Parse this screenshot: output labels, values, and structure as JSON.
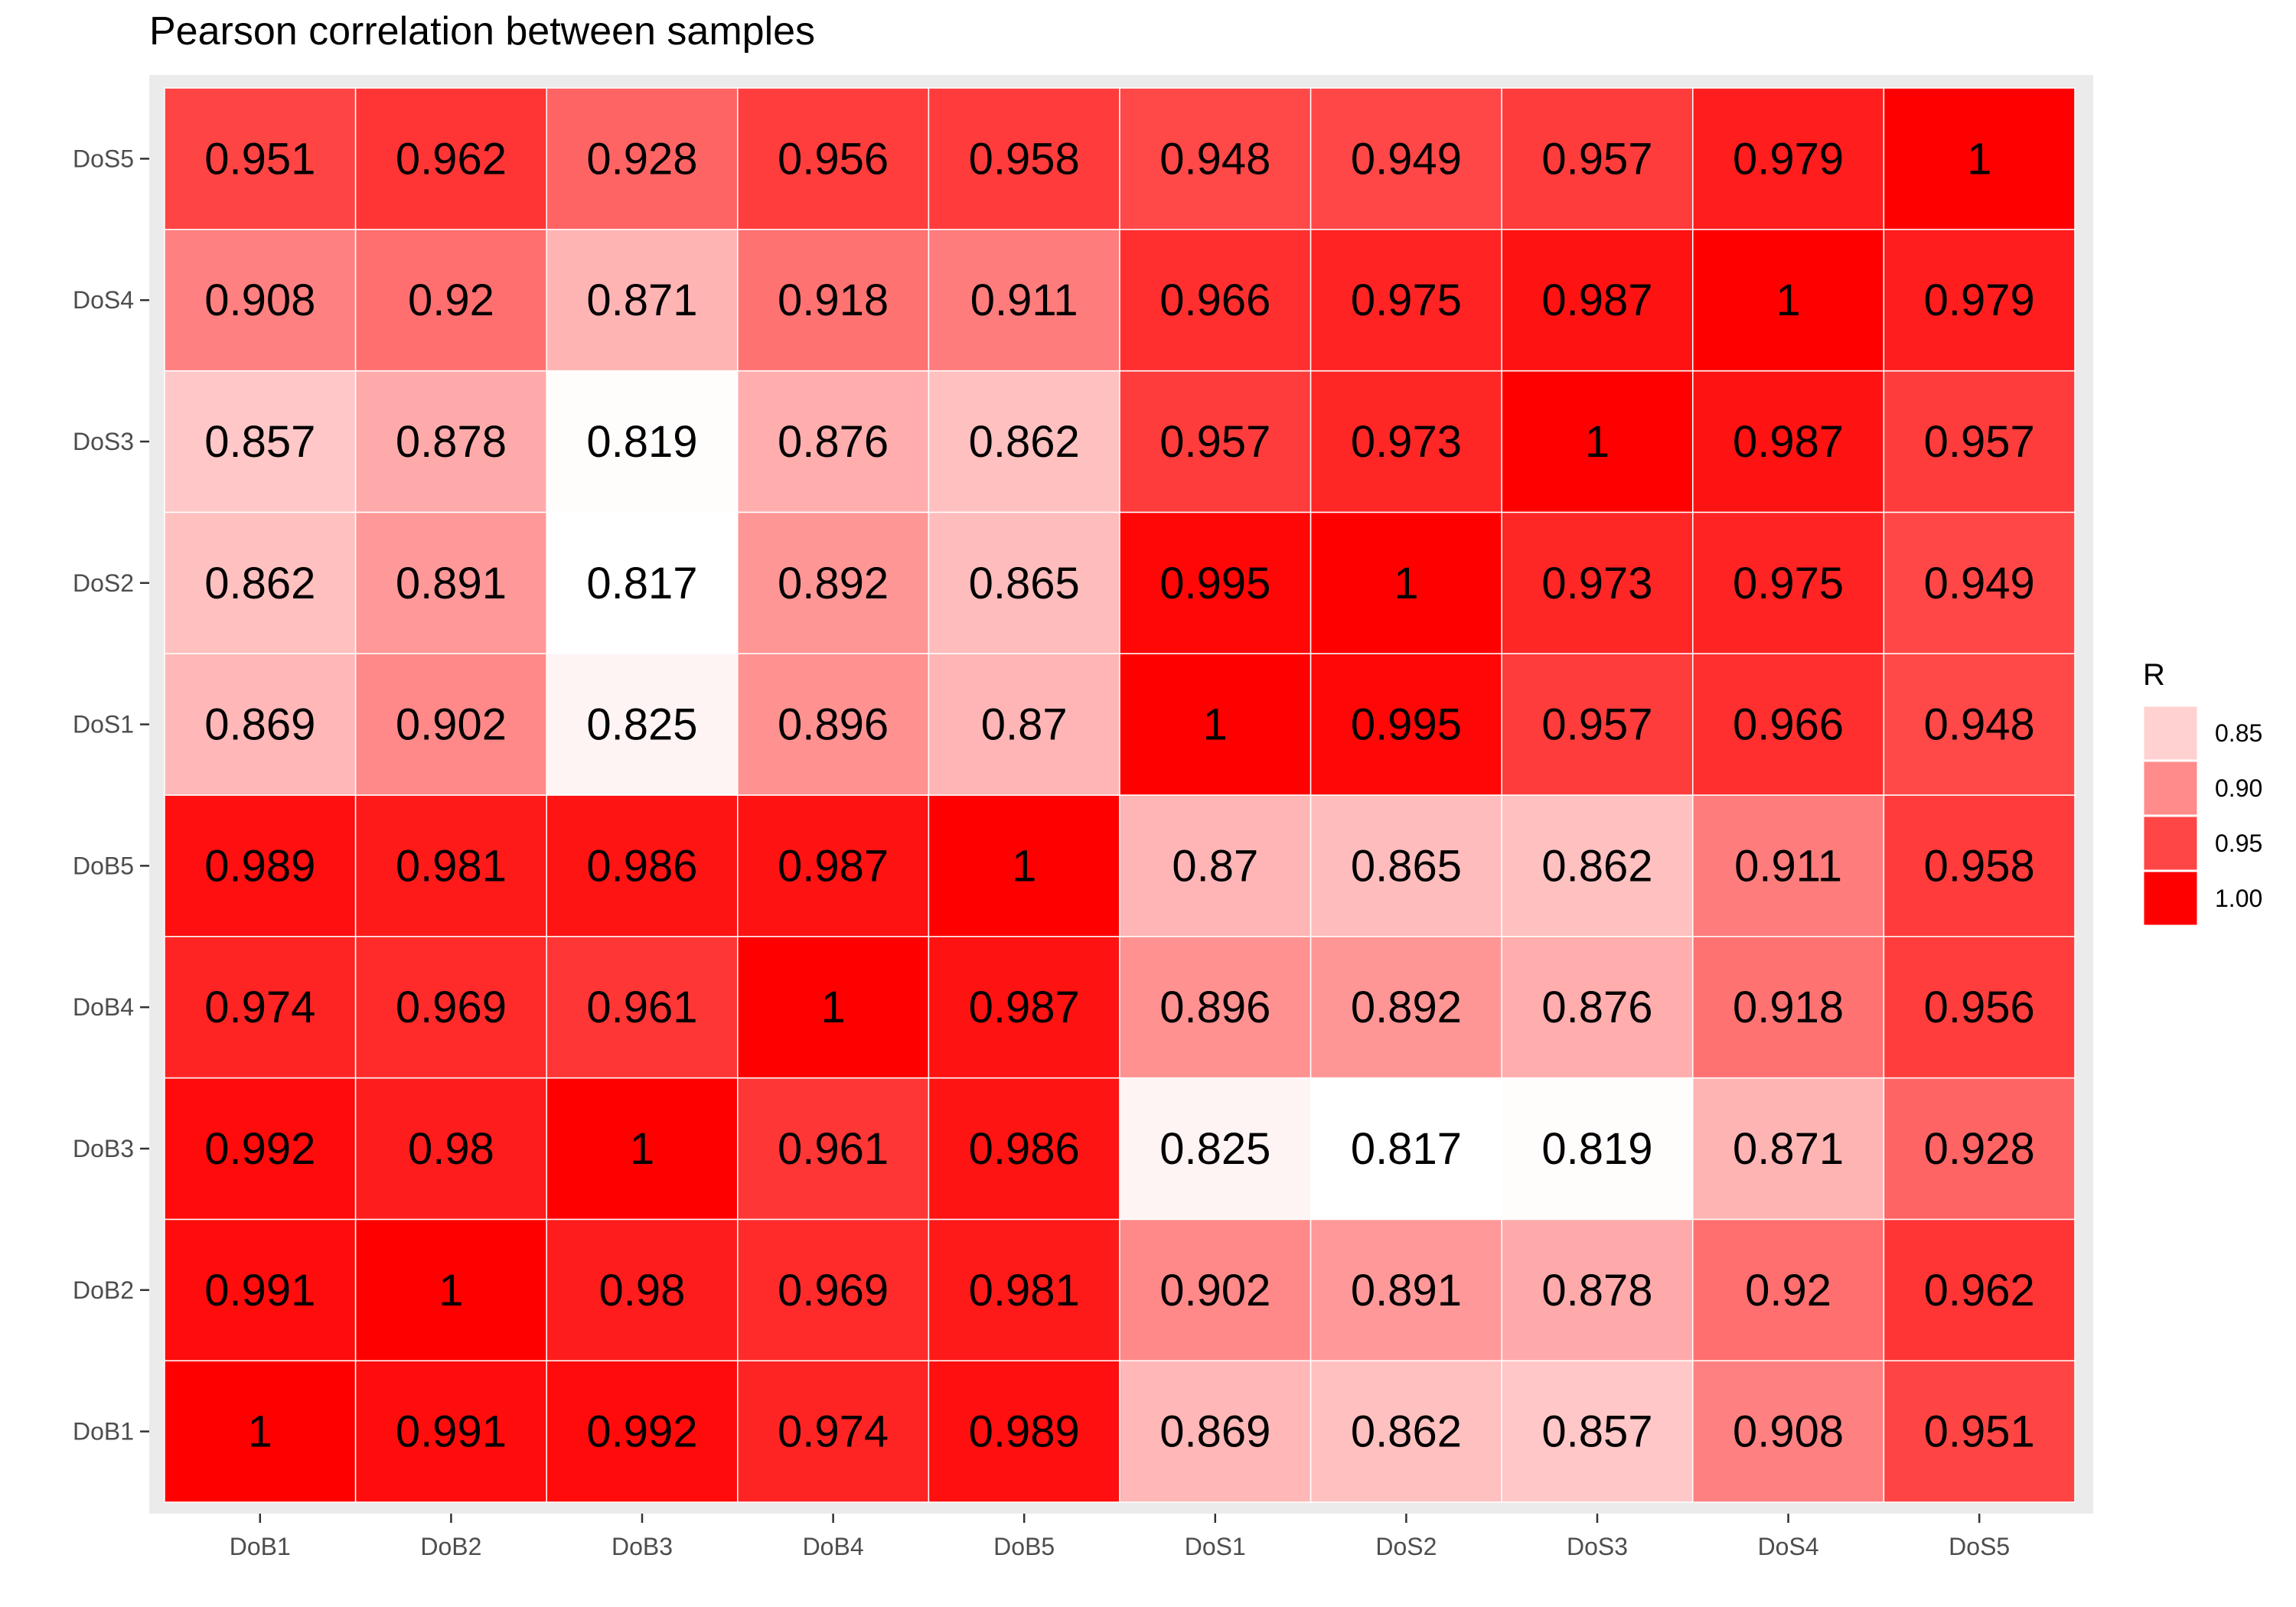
{
  "chart_data": {
    "type": "heatmap",
    "title": "Pearson correlation between samples",
    "x_categories": [
      "DoB1",
      "DoB2",
      "DoB3",
      "DoB4",
      "DoB5",
      "DoS1",
      "DoS2",
      "DoS3",
      "DoS4",
      "DoS5"
    ],
    "y_categories": [
      "DoB1",
      "DoB2",
      "DoB3",
      "DoB4",
      "DoB5",
      "DoS1",
      "DoS2",
      "DoS3",
      "DoS4",
      "DoS5"
    ],
    "values": [
      [
        "1",
        "0.991",
        "0.992",
        "0.974",
        "0.989",
        "0.869",
        "0.862",
        "0.857",
        "0.908",
        "0.951"
      ],
      [
        "0.991",
        "1",
        "0.98",
        "0.969",
        "0.981",
        "0.902",
        "0.891",
        "0.878",
        "0.92",
        "0.962"
      ],
      [
        "0.992",
        "0.98",
        "1",
        "0.961",
        "0.986",
        "0.825",
        "0.817",
        "0.819",
        "0.871",
        "0.928"
      ],
      [
        "0.974",
        "0.969",
        "0.961",
        "1",
        "0.987",
        "0.896",
        "0.892",
        "0.876",
        "0.918",
        "0.956"
      ],
      [
        "0.989",
        "0.981",
        "0.986",
        "0.987",
        "1",
        "0.87",
        "0.865",
        "0.862",
        "0.911",
        "0.958"
      ],
      [
        "0.869",
        "0.902",
        "0.825",
        "0.896",
        "0.87",
        "1",
        "0.995",
        "0.957",
        "0.966",
        "0.948"
      ],
      [
        "0.862",
        "0.891",
        "0.817",
        "0.892",
        "0.865",
        "0.995",
        "1",
        "0.973",
        "0.975",
        "0.949"
      ],
      [
        "0.857",
        "0.878",
        "0.819",
        "0.876",
        "0.862",
        "0.957",
        "0.973",
        "1",
        "0.987",
        "0.957"
      ],
      [
        "0.908",
        "0.92",
        "0.871",
        "0.918",
        "0.911",
        "0.966",
        "0.975",
        "0.987",
        "1",
        "0.979"
      ],
      [
        "0.951",
        "0.962",
        "0.928",
        "0.956",
        "0.958",
        "0.948",
        "0.949",
        "0.957",
        "0.979",
        "1"
      ]
    ],
    "value_range": [
      0.817,
      1.0
    ],
    "color_low": "#ffffff",
    "color_high": "#ff0000",
    "panel_background": "#ebebeb",
    "legend": {
      "title": "R",
      "position": "right",
      "labels": [
        "0.85",
        "0.90",
        "0.95",
        "1.00"
      ],
      "values": [
        0.85,
        0.9,
        0.95,
        1.0
      ]
    }
  }
}
